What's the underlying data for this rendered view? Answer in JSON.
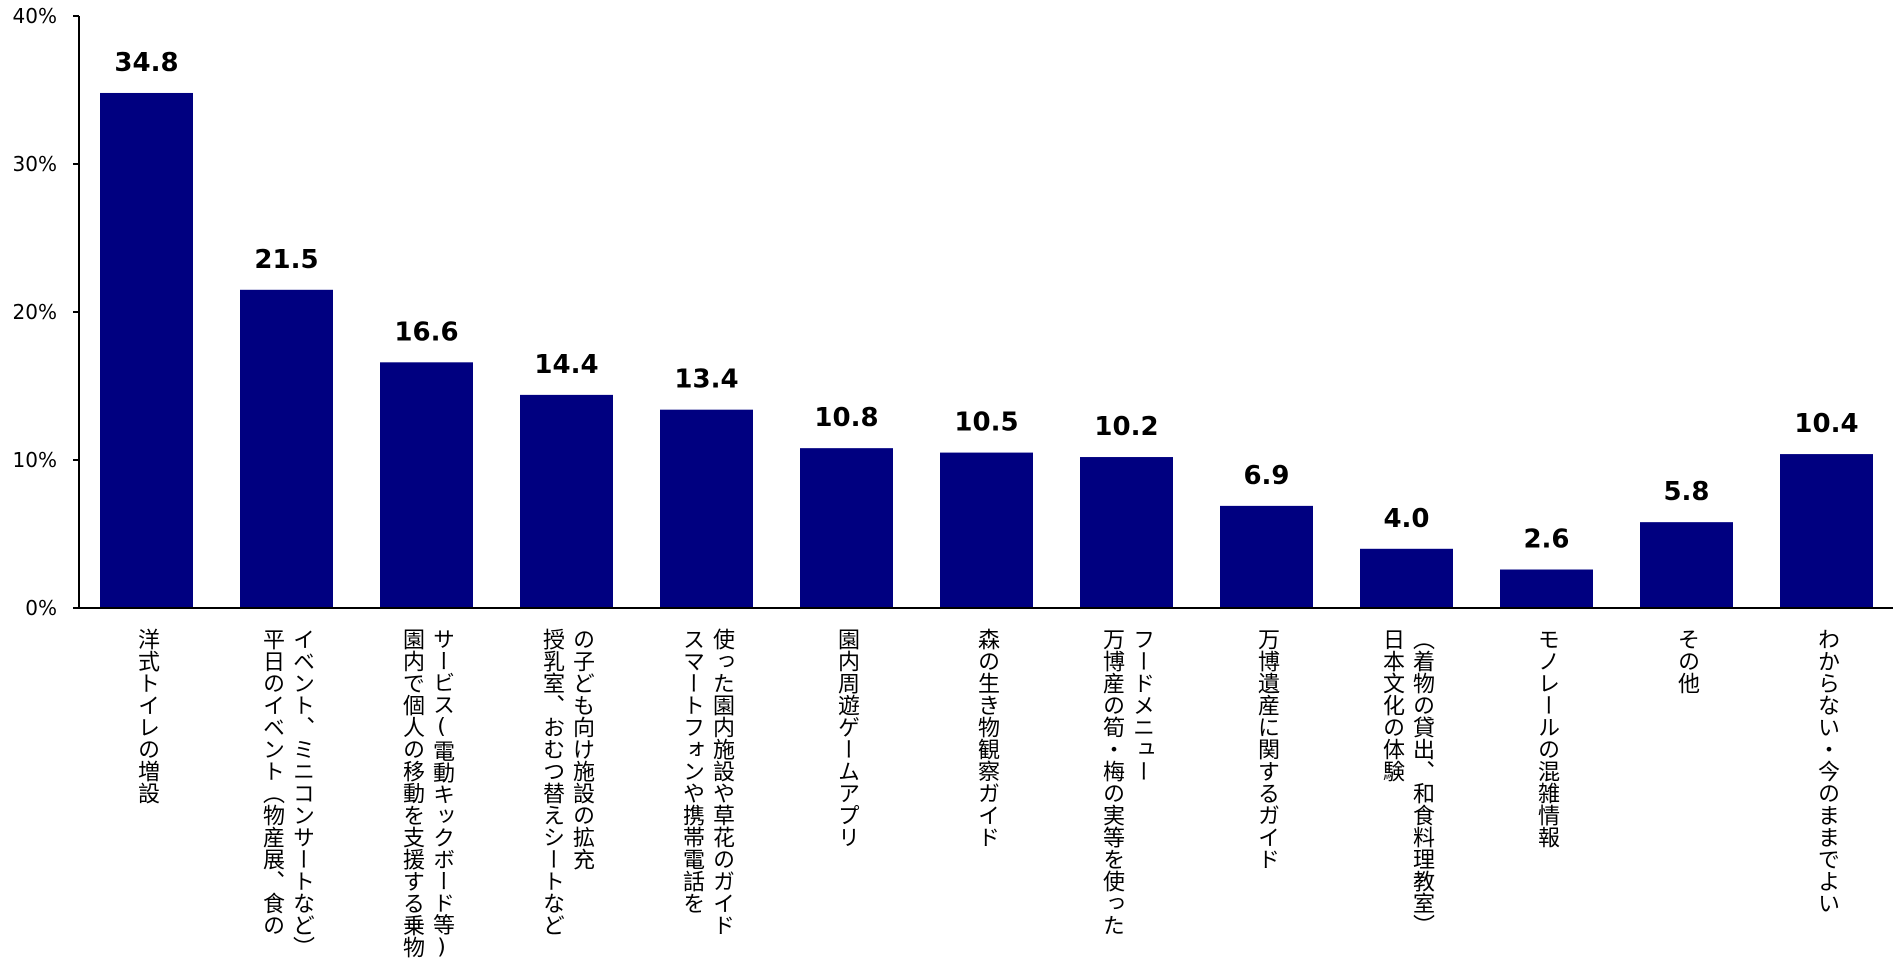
{
  "colors": {
    "bar": "#000080",
    "axis": "#000000",
    "text": "#000000"
  },
  "chart_data": {
    "type": "bar",
    "title": "",
    "xlabel": "",
    "ylabel": "",
    "ylim": [
      0,
      40
    ],
    "y_ticks": [
      0,
      10,
      20,
      30,
      40
    ],
    "y_tick_labels": [
      "0%",
      "10%",
      "20%",
      "30%",
      "40%"
    ],
    "grid": false,
    "legend": "none",
    "categories": [
      [
        "洋式トイレの増設"
      ],
      [
        "イベント、ミニコンサートなど）",
        "平日のイベント（物産展、食の"
      ],
      [
        "サービス(電動キックボード等)",
        "園内で個人の移動を支援する乗物"
      ],
      [
        "の子ども向け施設の拡充",
        "授乳室、おむつ替えシートなど"
      ],
      [
        "使った園内施設や草花のガイド",
        "スマートフォンや携帯電話を"
      ],
      [
        "園内周遊ゲームアプリ"
      ],
      [
        "森の生き物観察ガイド"
      ],
      [
        "フードメニュー",
        "万博産の筍・梅の実等を使った"
      ],
      [
        "万博遺産に関するガイド"
      ],
      [
        "（着物の貸出、和食料理教室）",
        "日本文化の体験"
      ],
      [
        "モノレールの混雑情報"
      ],
      [
        "その他"
      ],
      [
        "わからない・今のままでよい"
      ]
    ],
    "values": [
      34.8,
      21.5,
      16.6,
      14.4,
      13.4,
      10.8,
      10.5,
      10.2,
      6.9,
      4.0,
      2.6,
      5.8,
      10.4
    ],
    "value_labels": [
      "34.8",
      "21.5",
      "16.6",
      "14.4",
      "13.4",
      "10.8",
      "10.5",
      "10.2",
      "6.9",
      "4.0",
      "2.6",
      "5.8",
      "10.4"
    ]
  }
}
